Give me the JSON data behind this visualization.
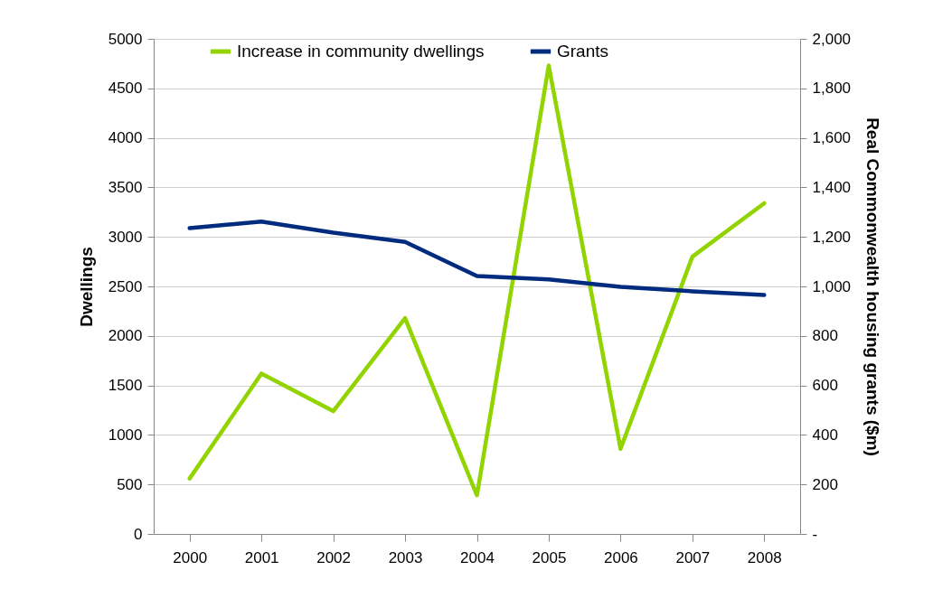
{
  "chart_data": {
    "type": "line",
    "categories": [
      "2000",
      "2001",
      "2002",
      "2003",
      "2004",
      "2005",
      "2006",
      "2007",
      "2008"
    ],
    "series": [
      {
        "name": "Increase in community dwellings",
        "color": "#92d400",
        "values": [
          560,
          1620,
          1240,
          2180,
          390,
          4730,
          860,
          2800,
          3340
        ]
      },
      {
        "name": "Grants",
        "color": "#002b7f",
        "axis": "y2",
        "values": [
          1235,
          1262,
          1217,
          1180,
          1042,
          1028,
          998,
          980,
          965
        ]
      }
    ],
    "ylabel": "Dwellings",
    "y2label": "Real Commonwealth  housing grants  ($m)",
    "ylim": [
      0,
      5000
    ],
    "yticks": [
      0,
      500,
      1000,
      1500,
      2000,
      2500,
      3000,
      3500,
      4000,
      4500,
      5000
    ],
    "y2lim": [
      0,
      2000
    ],
    "y2ticks": [
      {
        "value": 0,
        "label": "-"
      },
      200,
      400,
      600,
      800,
      {
        "value": 1000,
        "label": "1,000"
      },
      {
        "value": 1200,
        "label": "1,200"
      },
      {
        "value": 1400,
        "label": "1,400"
      },
      {
        "value": 1600,
        "label": "1,600"
      },
      {
        "value": 1800,
        "label": "1,800"
      },
      {
        "value": 2000,
        "label": "2,000"
      }
    ],
    "grid": "y",
    "legend": "top",
    "line_style": "solid",
    "marker": "none"
  }
}
